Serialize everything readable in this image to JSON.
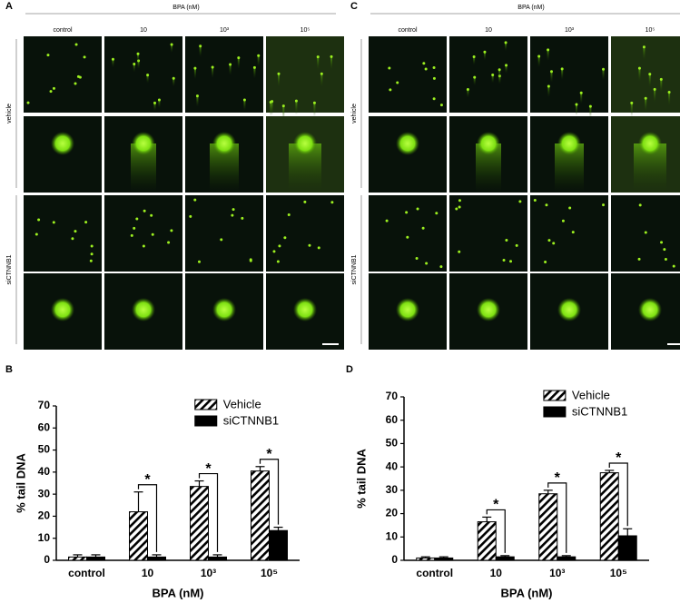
{
  "panels": [
    {
      "label": "A",
      "header": "BPA (nM)",
      "columns": [
        "control",
        "10",
        "10³",
        "10⁵"
      ],
      "rows": [
        "vehicle",
        "siCTNNB1"
      ]
    },
    {
      "label": "C",
      "header": "BPA (nM)",
      "columns": [
        "control",
        "10",
        "10³",
        "10⁵"
      ],
      "rows": [
        "vehicle",
        "siCTNNB1"
      ]
    }
  ],
  "chart_data": [
    {
      "type": "bar",
      "panel_label": "B",
      "ylabel": "% tail DNA",
      "xlabel": "BPA (nM)",
      "categories": [
        "control",
        "10",
        "10³",
        "10⁵"
      ],
      "series": [
        {
          "name": "Vehicle",
          "color": "#000000",
          "pattern": "hatch",
          "values": [
            1.5,
            22,
            33.5,
            40.5
          ],
          "errors": [
            1,
            9,
            2.5,
            2
          ]
        },
        {
          "name": "siCTNNB1",
          "color": "#000000",
          "pattern": "solid",
          "values": [
            1.5,
            1.5,
            1.5,
            13.5
          ],
          "errors": [
            1,
            1,
            1,
            1.5
          ]
        }
      ],
      "significance": [
        null,
        "*",
        "*",
        "*"
      ],
      "ylim": [
        0,
        70
      ],
      "yticks": [
        0,
        10,
        20,
        30,
        40,
        50,
        60,
        70
      ],
      "legend": "top-right"
    },
    {
      "type": "bar",
      "panel_label": "D",
      "ylabel": "% tail DNA",
      "xlabel": "BPA (nM)",
      "categories": [
        "control",
        "10",
        "10³",
        "10⁵"
      ],
      "series": [
        {
          "name": "Vehicle",
          "color": "#000000",
          "pattern": "hatch",
          "values": [
            1,
            16.5,
            28.5,
            37.5
          ],
          "errors": [
            0.5,
            2,
            1.5,
            1
          ]
        },
        {
          "name": "siCTNNB1",
          "color": "#000000",
          "pattern": "solid",
          "values": [
            1,
            1.5,
            1.5,
            10.5
          ],
          "errors": [
            0.5,
            0.5,
            0.5,
            3
          ]
        }
      ],
      "significance": [
        null,
        "*",
        "*",
        "*"
      ],
      "ylim": [
        0,
        70
      ],
      "yticks": [
        0,
        10,
        20,
        30,
        40,
        50,
        60,
        70
      ],
      "legend": "top-right"
    }
  ]
}
